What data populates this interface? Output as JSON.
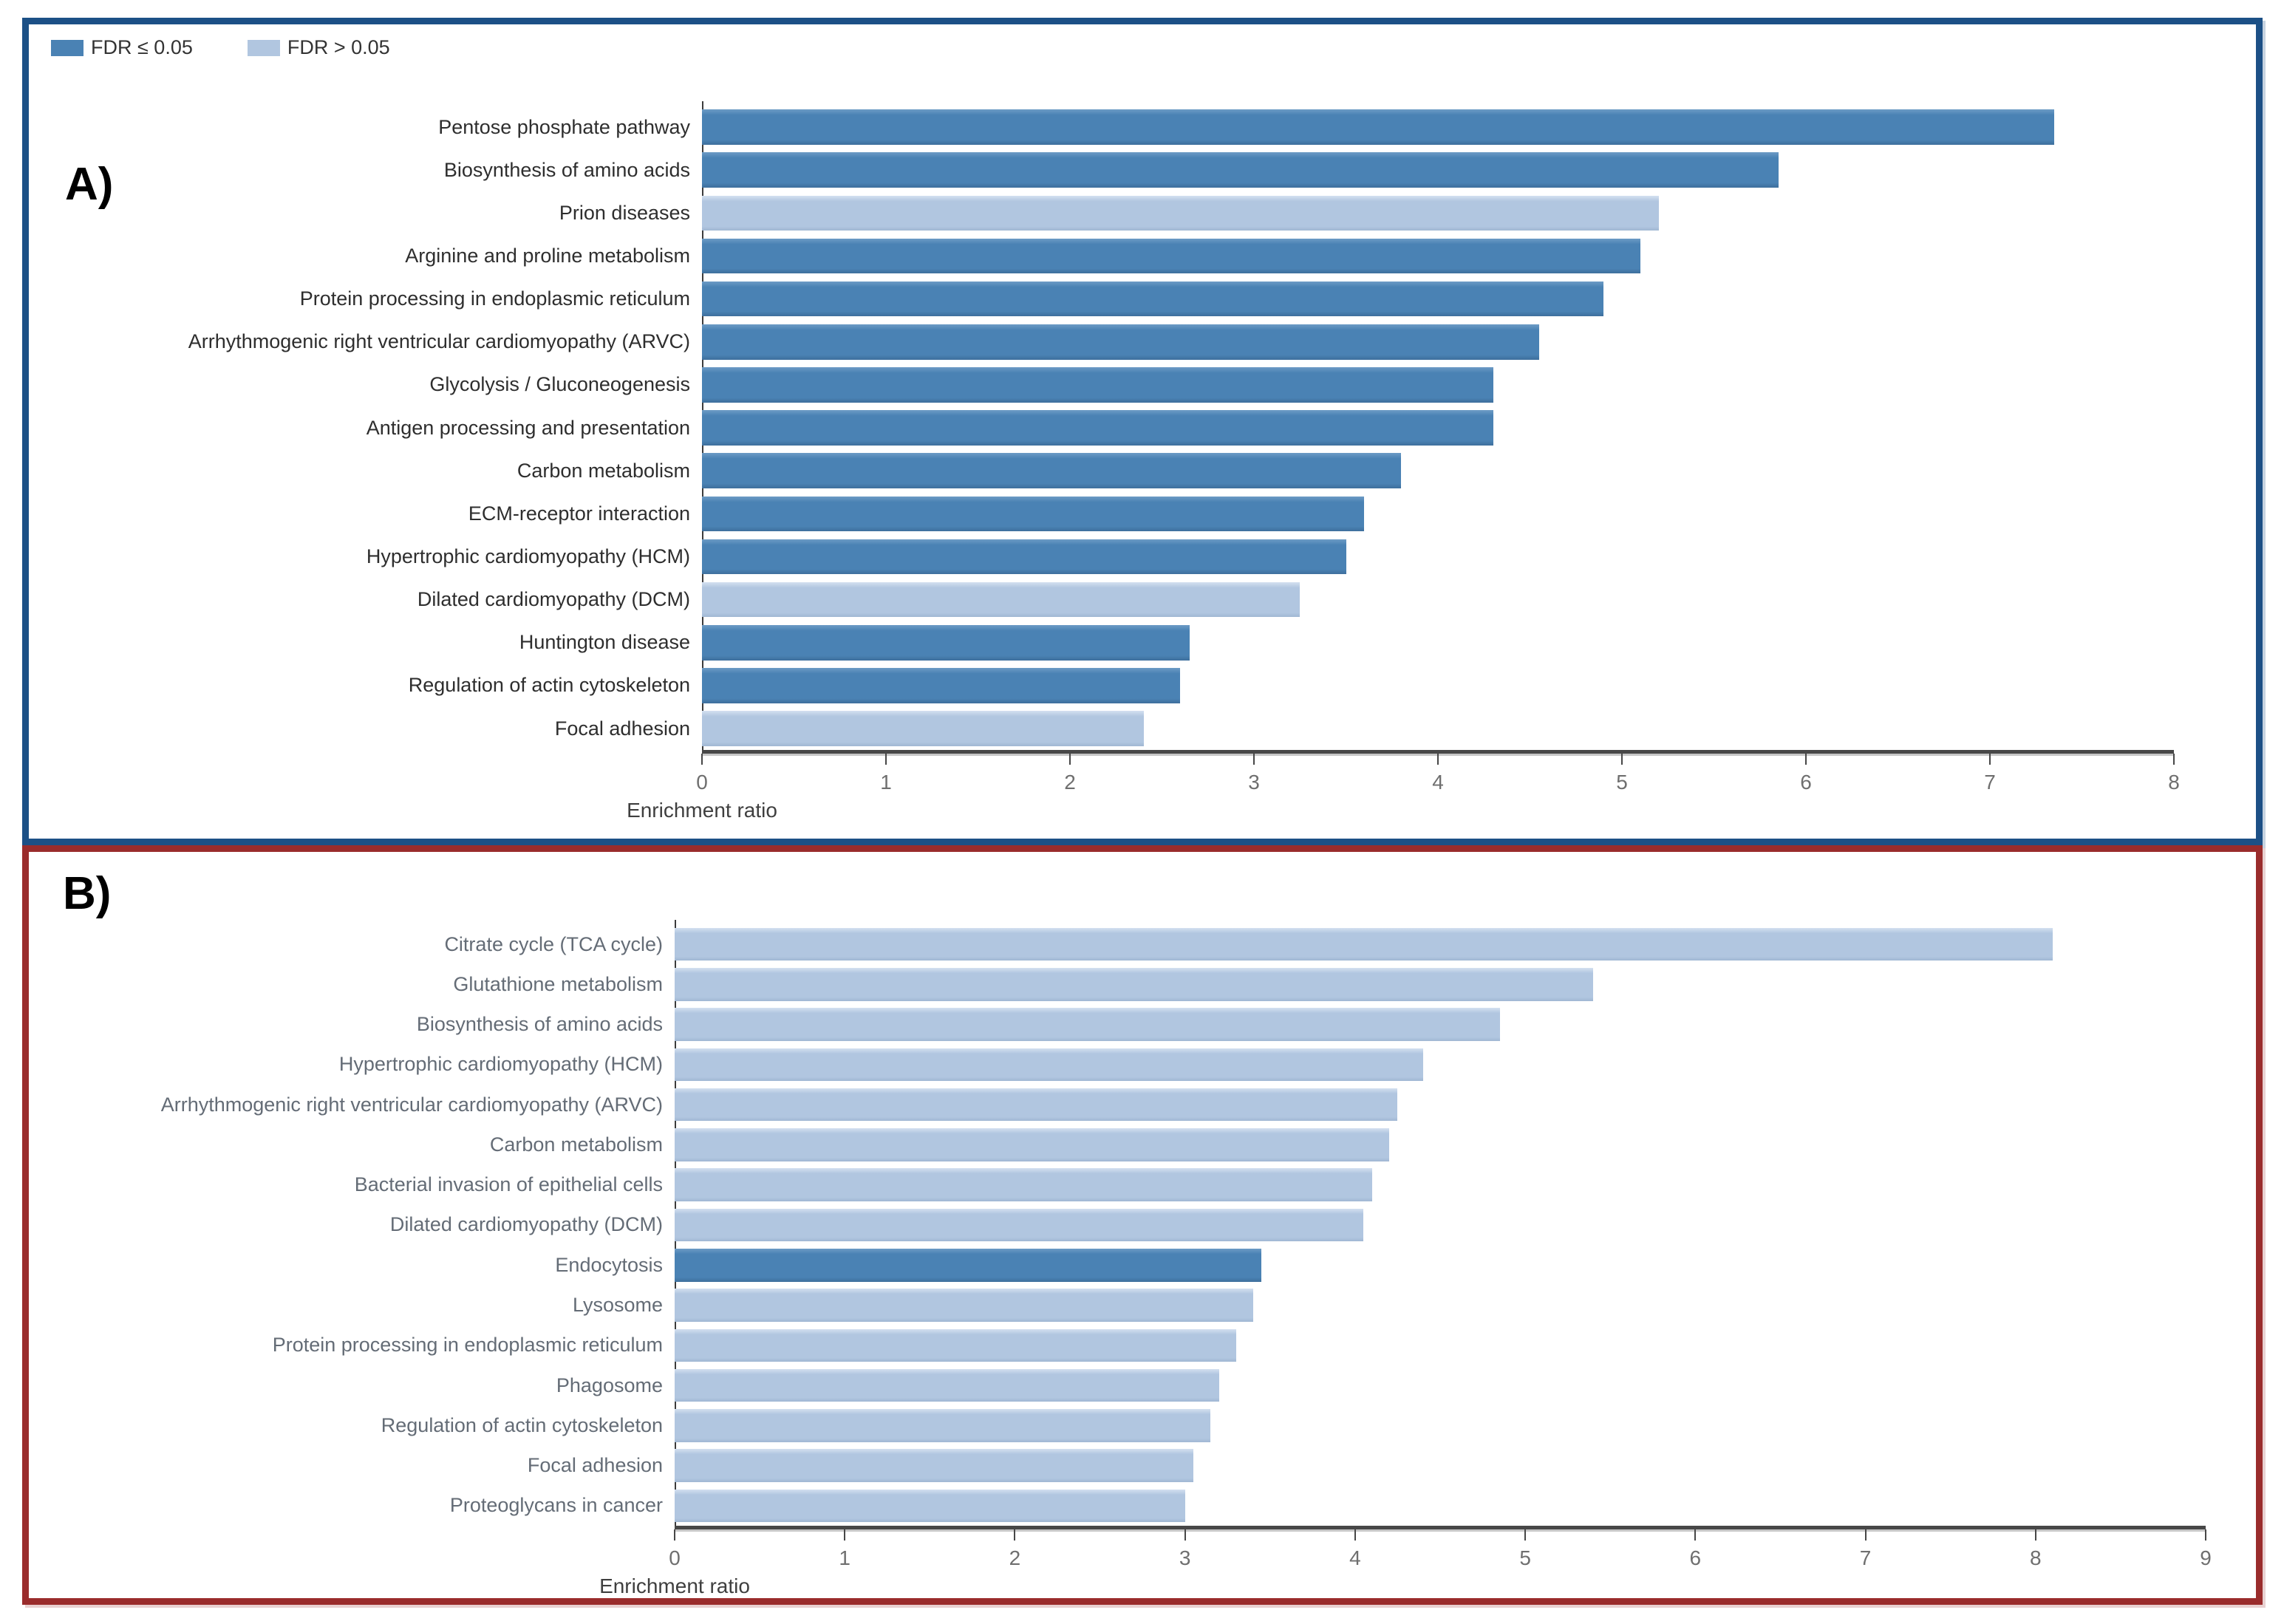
{
  "legend": {
    "items": [
      {
        "key": "significant",
        "label": "FDR ≤ 0.05",
        "color": "#4a82b4"
      },
      {
        "key": "not_significant",
        "label": "FDR > 0.05",
        "color": "#b1c6e0"
      }
    ]
  },
  "colors": {
    "significant": "#4a82b4",
    "not_significant": "#b1c6e0",
    "panel_a_border": "#1c5086",
    "panel_b_border": "#9a2c2c"
  },
  "chart_data": [
    {
      "type": "bar",
      "orientation": "horizontal",
      "panel": "A)",
      "xlabel": "Enrichment ratio",
      "xlim": [
        0,
        8
      ],
      "xticks": [
        0,
        1,
        2,
        3,
        4,
        5,
        6,
        7,
        8
      ],
      "grid": false,
      "legend_position": "top-left",
      "bars": [
        {
          "category": "Pentose phosphate pathway",
          "value": 7.35,
          "fdr_significant": true
        },
        {
          "category": "Biosynthesis of amino acids",
          "value": 5.85,
          "fdr_significant": true
        },
        {
          "category": "Prion diseases",
          "value": 5.2,
          "fdr_significant": false
        },
        {
          "category": "Arginine and proline metabolism",
          "value": 5.1,
          "fdr_significant": true
        },
        {
          "category": "Protein processing in endoplasmic reticulum",
          "value": 4.9,
          "fdr_significant": true
        },
        {
          "category": "Arrhythmogenic right ventricular cardiomyopathy (ARVC)",
          "value": 4.55,
          "fdr_significant": true
        },
        {
          "category": "Glycolysis / Gluconeogenesis",
          "value": 4.3,
          "fdr_significant": true
        },
        {
          "category": "Antigen processing and presentation",
          "value": 4.3,
          "fdr_significant": true
        },
        {
          "category": "Carbon metabolism",
          "value": 3.8,
          "fdr_significant": true
        },
        {
          "category": "ECM-receptor interaction",
          "value": 3.6,
          "fdr_significant": true
        },
        {
          "category": "Hypertrophic cardiomyopathy (HCM)",
          "value": 3.5,
          "fdr_significant": true
        },
        {
          "category": "Dilated cardiomyopathy (DCM)",
          "value": 3.25,
          "fdr_significant": false
        },
        {
          "category": "Huntington disease",
          "value": 2.65,
          "fdr_significant": true
        },
        {
          "category": "Regulation of actin cytoskeleton",
          "value": 2.6,
          "fdr_significant": true
        },
        {
          "category": "Focal adhesion",
          "value": 2.4,
          "fdr_significant": false
        }
      ]
    },
    {
      "type": "bar",
      "orientation": "horizontal",
      "panel": "B)",
      "xlabel": "Enrichment ratio",
      "xlim": [
        0,
        9
      ],
      "xticks": [
        0,
        1,
        2,
        3,
        4,
        5,
        6,
        7,
        8,
        9
      ],
      "grid": false,
      "bars": [
        {
          "category": "Citrate cycle (TCA cycle)",
          "value": 8.1,
          "fdr_significant": false
        },
        {
          "category": "Glutathione metabolism",
          "value": 5.4,
          "fdr_significant": false
        },
        {
          "category": "Biosynthesis of amino acids",
          "value": 4.85,
          "fdr_significant": false
        },
        {
          "category": "Hypertrophic cardiomyopathy (HCM)",
          "value": 4.4,
          "fdr_significant": false
        },
        {
          "category": "Arrhythmogenic right ventricular cardiomyopathy (ARVC)",
          "value": 4.25,
          "fdr_significant": false
        },
        {
          "category": "Carbon metabolism",
          "value": 4.2,
          "fdr_significant": false
        },
        {
          "category": "Bacterial invasion of epithelial cells",
          "value": 4.1,
          "fdr_significant": false
        },
        {
          "category": "Dilated cardiomyopathy (DCM)",
          "value": 4.05,
          "fdr_significant": false
        },
        {
          "category": "Endocytosis",
          "value": 3.45,
          "fdr_significant": true
        },
        {
          "category": "Lysosome",
          "value": 3.4,
          "fdr_significant": false
        },
        {
          "category": "Protein processing in endoplasmic reticulum",
          "value": 3.3,
          "fdr_significant": false
        },
        {
          "category": "Phagosome",
          "value": 3.2,
          "fdr_significant": false
        },
        {
          "category": "Regulation of actin cytoskeleton",
          "value": 3.15,
          "fdr_significant": false
        },
        {
          "category": "Focal adhesion",
          "value": 3.05,
          "fdr_significant": false
        },
        {
          "category": "Proteoglycans in cancer",
          "value": 3.0,
          "fdr_significant": false
        }
      ]
    }
  ]
}
